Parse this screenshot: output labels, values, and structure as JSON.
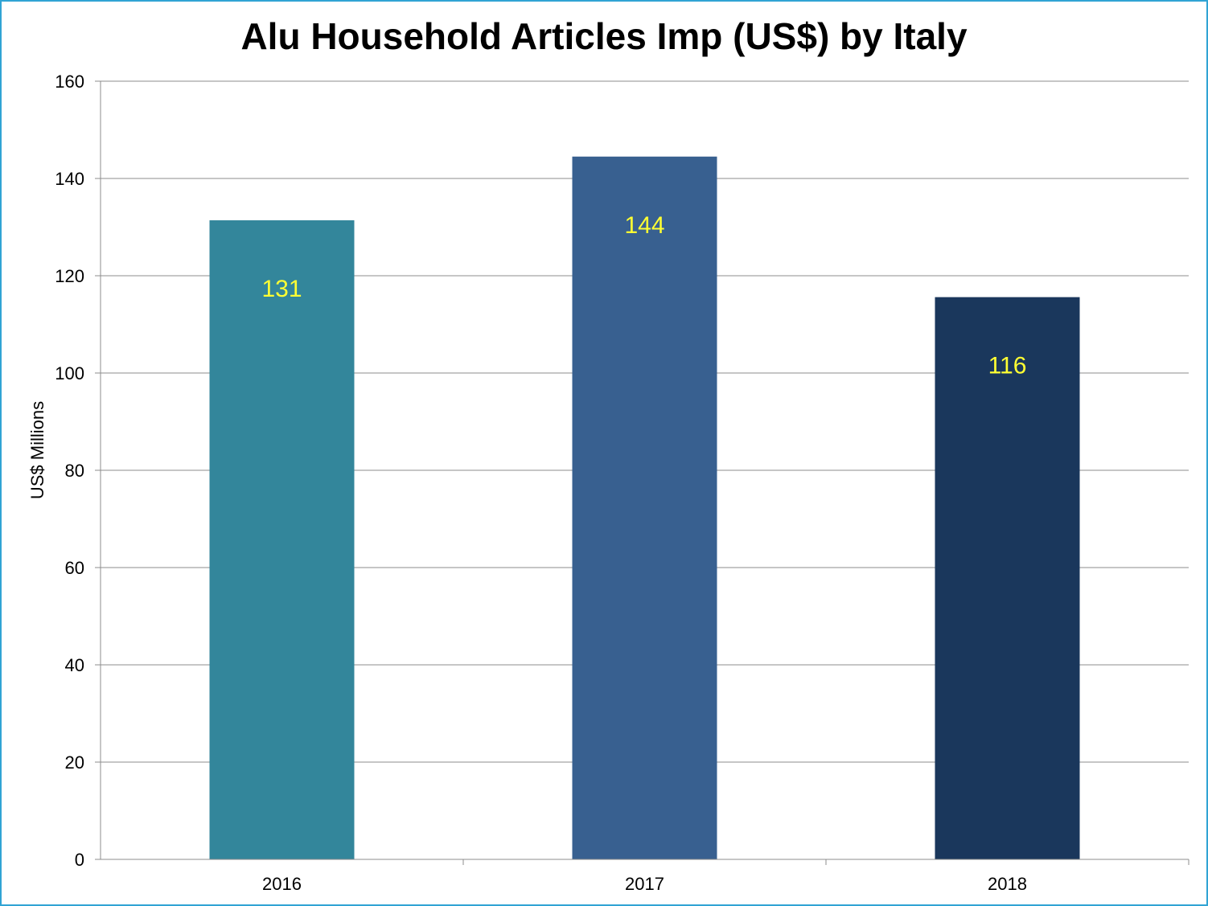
{
  "chart_data": {
    "type": "bar",
    "title": "Alu Household Articles Imp (US$) by Italy",
    "ylabel": "US$ Millions",
    "xlabel": "",
    "categories": [
      "2016",
      "2017",
      "2018"
    ],
    "values": [
      131.4,
      144.5,
      115.6
    ],
    "data_labels": [
      "131",
      "144",
      "116"
    ],
    "ylim": [
      0,
      160
    ],
    "yticks": [
      0,
      20,
      40,
      60,
      80,
      100,
      120,
      140,
      160
    ],
    "grid": true,
    "legend": "none",
    "colors": {
      "bars": [
        "#33869b",
        "#386090",
        "#1a375c"
      ],
      "data_label": "#ffff33",
      "gridline": "#8c8c8c",
      "frame": "#31a4d4"
    }
  }
}
